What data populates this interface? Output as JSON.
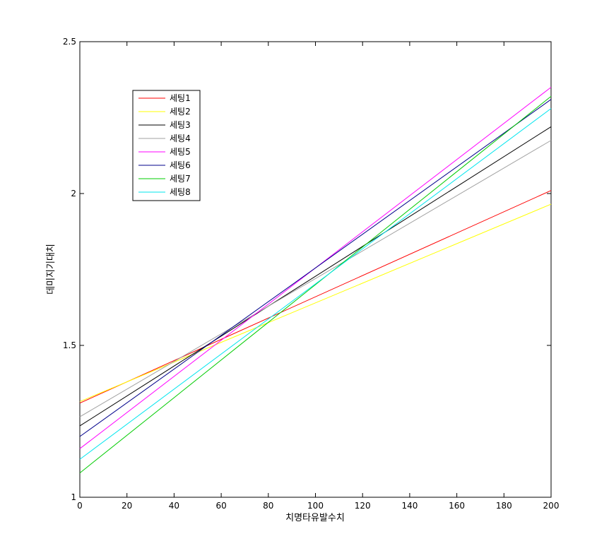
{
  "chart_data": {
    "type": "line",
    "title": "",
    "xlabel": "치명타유발수치",
    "ylabel": "데미지기대치",
    "xlim": [
      0,
      200
    ],
    "ylim": [
      1,
      2.5
    ],
    "xticks": [
      0,
      20,
      40,
      60,
      80,
      100,
      120,
      140,
      160,
      180,
      200
    ],
    "yticks": [
      1,
      1.5,
      2,
      2.5
    ],
    "ytick_labels": [
      "1",
      "1.5",
      "2",
      "2.5"
    ],
    "grid": false,
    "legend_position": "top-left",
    "series": [
      {
        "name": "세팅1",
        "color": "#ff0000",
        "x": [
          0,
          200
        ],
        "y": [
          1.31,
          2.01
        ]
      },
      {
        "name": "세팅2",
        "color": "#ffff00",
        "x": [
          0,
          200
        ],
        "y": [
          1.315,
          1.965
        ]
      },
      {
        "name": "세팅3",
        "color": "#000000",
        "x": [
          0,
          200
        ],
        "y": [
          1.235,
          2.22
        ]
      },
      {
        "name": "세팅4",
        "color": "#a0a0a0",
        "x": [
          0,
          200
        ],
        "y": [
          1.265,
          2.175
        ]
      },
      {
        "name": "세팅5",
        "color": "#ff00ff",
        "x": [
          0,
          200
        ],
        "y": [
          1.16,
          2.35
        ]
      },
      {
        "name": "세팅6",
        "color": "#00008b",
        "x": [
          0,
          200
        ],
        "y": [
          1.2,
          2.31
        ]
      },
      {
        "name": "세팅7",
        "color": "#00cc00",
        "x": [
          0,
          200
        ],
        "y": [
          1.08,
          2.32
        ]
      },
      {
        "name": "세팅8",
        "color": "#00e5ee",
        "x": [
          0,
          200
        ],
        "y": [
          1.125,
          2.28
        ]
      }
    ]
  }
}
